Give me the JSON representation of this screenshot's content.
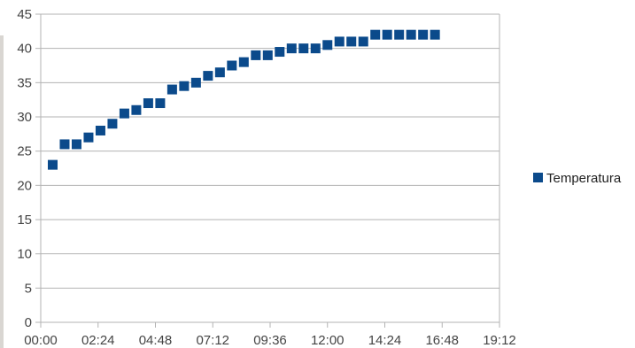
{
  "chart_data": {
    "type": "scatter",
    "title": "",
    "xlabel": "",
    "ylabel": "",
    "x_axis_unit": "time (HH:MM)",
    "xlim": [
      "00:00",
      "19:12"
    ],
    "ylim": [
      0,
      45
    ],
    "x_ticks": [
      "00:00",
      "02:24",
      "04:48",
      "07:12",
      "09:36",
      "12:00",
      "14:24",
      "16:48",
      "19:12"
    ],
    "y_ticks": [
      "0",
      "5",
      "10",
      "15",
      "20",
      "25",
      "30",
      "35",
      "40",
      "45"
    ],
    "grid": true,
    "legend_position": "right",
    "marker": "square",
    "series": [
      {
        "name": "Temperatura",
        "color": "#0b4a8b",
        "points": [
          {
            "x": "00:30",
            "y": 23
          },
          {
            "x": "01:00",
            "y": 26
          },
          {
            "x": "01:30",
            "y": 26
          },
          {
            "x": "02:00",
            "y": 27
          },
          {
            "x": "02:30",
            "y": 28
          },
          {
            "x": "03:00",
            "y": 29
          },
          {
            "x": "03:30",
            "y": 30.5
          },
          {
            "x": "04:00",
            "y": 31
          },
          {
            "x": "04:30",
            "y": 32
          },
          {
            "x": "05:00",
            "y": 32
          },
          {
            "x": "05:30",
            "y": 34
          },
          {
            "x": "06:00",
            "y": 34.5
          },
          {
            "x": "06:30",
            "y": 35
          },
          {
            "x": "07:00",
            "y": 36
          },
          {
            "x": "07:30",
            "y": 36.5
          },
          {
            "x": "08:00",
            "y": 37.5
          },
          {
            "x": "08:30",
            "y": 38
          },
          {
            "x": "09:00",
            "y": 39
          },
          {
            "x": "09:30",
            "y": 39
          },
          {
            "x": "10:00",
            "y": 39.5
          },
          {
            "x": "10:30",
            "y": 40
          },
          {
            "x": "11:00",
            "y": 40
          },
          {
            "x": "11:30",
            "y": 40
          },
          {
            "x": "12:00",
            "y": 40.5
          },
          {
            "x": "12:30",
            "y": 41
          },
          {
            "x": "13:00",
            "y": 41
          },
          {
            "x": "13:30",
            "y": 41
          },
          {
            "x": "14:00",
            "y": 42
          },
          {
            "x": "14:30",
            "y": 42
          },
          {
            "x": "15:00",
            "y": 42
          },
          {
            "x": "15:30",
            "y": 42
          },
          {
            "x": "16:00",
            "y": 42
          },
          {
            "x": "16:30",
            "y": 42
          }
        ]
      }
    ]
  }
}
